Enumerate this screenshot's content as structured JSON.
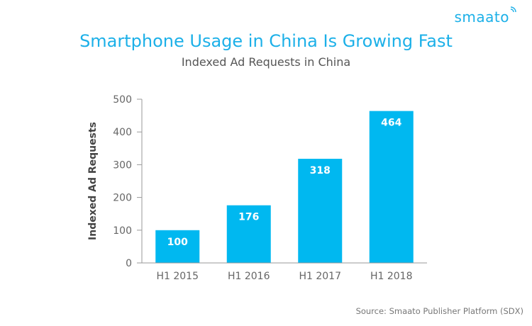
{
  "brand": {
    "logo_text": "smaato"
  },
  "colors": {
    "accent": "#1CB0E8",
    "bar": "#00B8F0",
    "bar_label": "#FFFFFF",
    "title": "#1CB0E8",
    "subtitle": "#555555",
    "axis_text": "#666666",
    "axis_title": "#444444",
    "axis_line": "#999999",
    "source": "#777777"
  },
  "chart_data": {
    "type": "bar",
    "title": "Smartphone Usage in China Is Growing Fast",
    "subtitle": "Indexed Ad Requests in China",
    "xlabel": "",
    "ylabel": "Indexed Ad Requests",
    "categories": [
      "H1 2015",
      "H1 2016",
      "H1 2017",
      "H1 2018"
    ],
    "values": [
      100,
      176,
      318,
      464
    ],
    "data_labels": [
      "100",
      "176",
      "318",
      "464"
    ],
    "ylim": [
      0,
      500
    ],
    "yticks": [
      0,
      100,
      200,
      300,
      400,
      500
    ],
    "grid": false,
    "legend": "none"
  },
  "footer": {
    "source": "Source: Smaato Publisher Platform (SDX)"
  }
}
